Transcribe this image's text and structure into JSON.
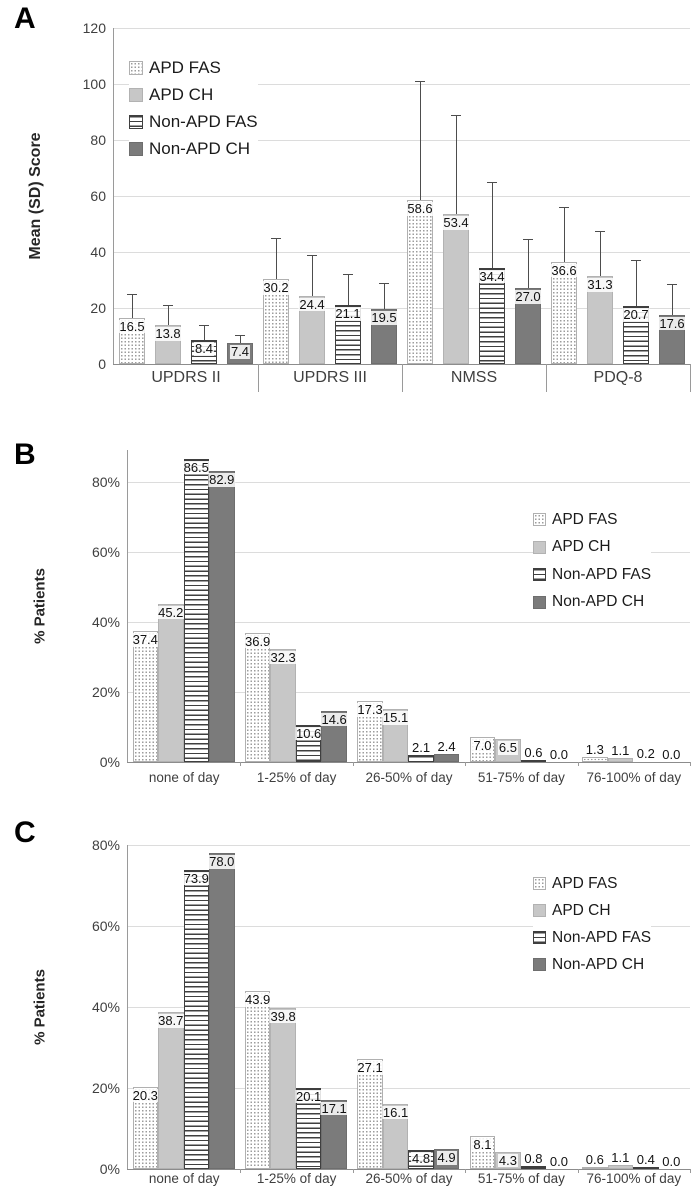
{
  "figure": {
    "panels": [
      "A",
      "B",
      "C"
    ],
    "colors": {
      "bar_light_gray": "#c7c7c7",
      "bar_dark_gray": "#7b7b7b",
      "stripe_color": "#3f3f3f",
      "dot_color": "#9c9c9c",
      "gridline": "#dcdcdc",
      "axis": "#8c8c8c"
    }
  },
  "charts": [
    {
      "panel": "A",
      "type": "bar",
      "y_axis_title": "Mean (SD) Score",
      "tick_values": [
        0,
        20,
        40,
        60,
        80,
        100,
        120
      ],
      "tick_labels": [
        "0",
        "20",
        "40",
        "60",
        "80",
        "100",
        "120"
      ],
      "ylim": [
        0,
        120
      ],
      "grid": true,
      "legend_position": "top-left-inside",
      "categories": [
        "UPDRS II",
        "UPDRS III",
        "NMSS",
        "PDQ-8"
      ],
      "series": [
        {
          "name": "APD FAS",
          "pattern": "dots",
          "values": [
            16.5,
            30.2,
            58.6,
            36.6
          ],
          "error_tops": [
            25,
            45,
            101,
            56
          ]
        },
        {
          "name": "APD CH",
          "pattern": "light",
          "values": [
            13.8,
            24.4,
            53.4,
            31.3
          ],
          "error_tops": [
            21,
            39,
            89,
            47.5
          ]
        },
        {
          "name": "Non-APD FAS",
          "pattern": "hlines",
          "values": [
            8.4,
            21.1,
            34.4,
            20.7
          ],
          "error_tops": [
            14,
            32,
            65,
            37
          ]
        },
        {
          "name": "Non-APD CH",
          "pattern": "dark",
          "values": [
            7.4,
            19.5,
            27.0,
            17.6
          ],
          "error_tops": [
            10.5,
            29,
            44.5,
            28.5
          ]
        }
      ]
    },
    {
      "panel": "B",
      "type": "bar",
      "y_axis_title": "% Patients",
      "tick_values": [
        0,
        20,
        40,
        60,
        80
      ],
      "tick_labels": [
        "0%",
        "20%",
        "40%",
        "60%",
        "80%"
      ],
      "ylim": [
        0,
        89
      ],
      "grid": true,
      "legend_position": "right-inside",
      "categories": [
        "none of day",
        "1-25% of day",
        "26-50% of day",
        "51-75% of day",
        "76-100% of day"
      ],
      "series": [
        {
          "name": "APD FAS",
          "pattern": "dots",
          "values": [
            37.4,
            36.9,
            17.3,
            7.0,
            1.3
          ]
        },
        {
          "name": "APD CH",
          "pattern": "light",
          "values": [
            45.2,
            32.3,
            15.1,
            6.5,
            1.1
          ]
        },
        {
          "name": "Non-APD FAS",
          "pattern": "hlines",
          "values": [
            86.5,
            10.6,
            2.1,
            0.6,
            0.2
          ]
        },
        {
          "name": "Non-APD CH",
          "pattern": "dark",
          "values": [
            82.9,
            14.6,
            2.4,
            0.0,
            0.0
          ]
        }
      ]
    },
    {
      "panel": "C",
      "type": "bar",
      "y_axis_title": "% Patients",
      "tick_values": [
        0,
        20,
        40,
        60,
        80
      ],
      "tick_labels": [
        "0%",
        "20%",
        "40%",
        "60%",
        "80%"
      ],
      "ylim": [
        0,
        80
      ],
      "grid": true,
      "legend_position": "right-inside",
      "categories": [
        "none of day",
        "1-25% of day",
        "26-50% of day",
        "51-75% of day",
        "76-100% of day"
      ],
      "series": [
        {
          "name": "APD FAS",
          "pattern": "dots",
          "values": [
            20.3,
            43.9,
            27.1,
            8.1,
            0.6
          ]
        },
        {
          "name": "APD CH",
          "pattern": "light",
          "values": [
            38.7,
            39.8,
            16.1,
            4.3,
            1.1
          ]
        },
        {
          "name": "Non-APD FAS",
          "pattern": "hlines",
          "values": [
            73.9,
            20.1,
            4.8,
            0.8,
            0.4
          ]
        },
        {
          "name": "Non-APD CH",
          "pattern": "dark",
          "values": [
            78.0,
            17.1,
            4.9,
            0.0,
            0.0
          ]
        }
      ]
    }
  ]
}
